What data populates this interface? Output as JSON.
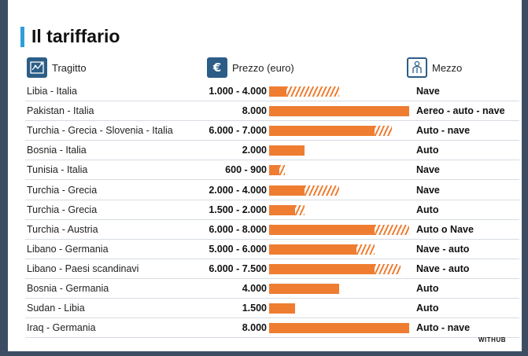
{
  "title": "Il tariffario",
  "headers": {
    "route": "Tragitto",
    "price": "Prezzo (euro)",
    "mode": "Mezzo"
  },
  "icons": {
    "route": "map-icon",
    "price": "euro-icon",
    "mode": "person-icon"
  },
  "colors": {
    "bar": "#ef7d31",
    "accent": "#2f9ed8",
    "icon": "#2c5d87"
  },
  "chart_data": {
    "type": "bar",
    "title": "Il tariffario",
    "xlabel": "",
    "ylabel": "Prezzo (euro)",
    "xlim": [
      0,
      8000
    ],
    "categories": [
      "Libia - Italia",
      "Pakistan - Italia",
      "Turchia - Grecia - Slovenia - Italia",
      "Bosnia - Italia",
      "Tunisia - Italia",
      "Turchia - Grecia",
      "Turchia - Grecia",
      "Turchia - Austria",
      "Libano - Germania",
      "Libano - Paesi scandinavi",
      "Bosnia - Germania",
      "Sudan - Libia",
      "Iraq - Germania"
    ],
    "price_labels": [
      "1.000 - 4.000",
      "8.000",
      "6.000 - 7.000",
      "2.000",
      "600 - 900",
      "2.000 - 4.000",
      "1.500 - 2.000",
      "6.000 - 8.000",
      "5.000 - 6.000",
      "6.000 - 7.500",
      "4.000",
      "1.500",
      "8.000"
    ],
    "min_values": [
      1000,
      8000,
      6000,
      2000,
      600,
      2000,
      1500,
      6000,
      5000,
      6000,
      4000,
      1500,
      8000
    ],
    "max_values": [
      4000,
      8000,
      7000,
      2000,
      900,
      4000,
      2000,
      8000,
      6000,
      7500,
      4000,
      1500,
      8000
    ],
    "modes": [
      "Nave",
      "Aereo - auto - nave",
      "Auto - nave",
      "Auto",
      "Nave",
      "Nave",
      "Auto",
      "Auto o Nave",
      "Nave - auto",
      "Nave - auto",
      "Auto",
      "Auto",
      "Auto - nave"
    ]
  },
  "source": "WITHUB"
}
